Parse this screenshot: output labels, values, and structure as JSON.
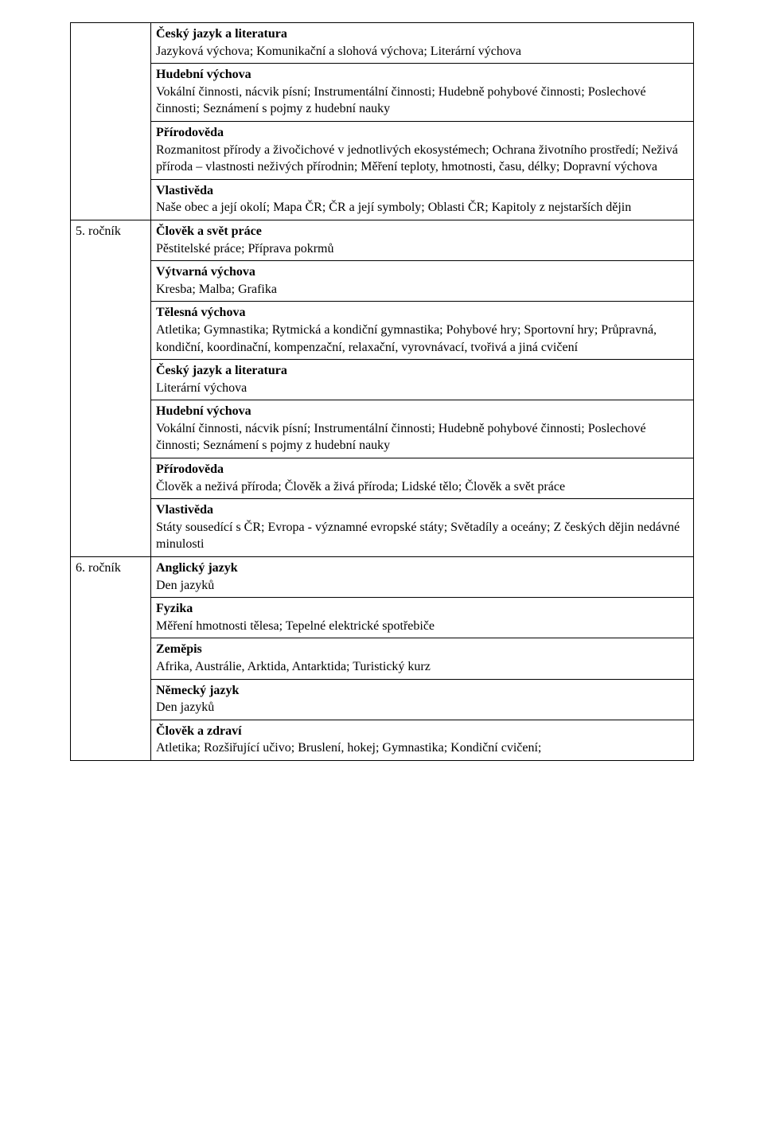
{
  "rows": [
    {
      "left": "",
      "cells": [
        {
          "title": "Český jazyk a literatura",
          "body": "Jazyková výchova; Komunikační a slohová výchova; Literární výchova"
        },
        {
          "title": "Hudební výchova",
          "body": "Vokální činnosti, nácvik písní; Instrumentální činnosti; Hudebně pohybové činnosti; Poslechové činnosti; Seznámení s pojmy z hudební nauky"
        },
        {
          "title": "Přírodověda",
          "body": "Rozmanitost přírody a živočichové v jednotlivých ekosystémech; Ochrana životního prostředí; Neživá příroda – vlastnosti neživých přírodnin; Měření teploty, hmotnosti, času, délky; Dopravní výchova"
        },
        {
          "title": "Vlastivěda",
          "body": "Naše obec a její okolí; Mapa ČR; ČR a její symboly; Oblasti ČR; Kapitoly z nejstarších dějin"
        }
      ]
    },
    {
      "left": "5. ročník",
      "cells": [
        {
          "title": "Člověk a svět práce",
          "body": "Pěstitelské práce; Příprava pokrmů"
        },
        {
          "title": "Výtvarná výchova",
          "body": "Kresba; Malba; Grafika"
        },
        {
          "title": "Tělesná výchova",
          "body": "Atletika; Gymnastika; Rytmická a kondiční gymnastika; Pohybové hry; Sportovní hry; Průpravná, kondiční, koordinační, kompenzační, relaxační, vyrovnávací, tvořivá a jiná cvičení"
        },
        {
          "title": "Český jazyk a literatura",
          "body": "Literární výchova"
        },
        {
          "title": "Hudební výchova",
          "body": "Vokální činnosti, nácvik písní; Instrumentální činnosti; Hudebně pohybové činnosti; Poslechové činnosti; Seznámení s pojmy z hudební nauky"
        },
        {
          "title": "Přírodověda",
          "body": "Člověk a neživá příroda; Člověk a živá příroda; Lidské tělo; Člověk a svět práce"
        },
        {
          "title": "Vlastivěda",
          "body": "Státy sousedící s ČR; Evropa - významné evropské státy; Světadíly a oceány; Z českých dějin nedávné minulosti"
        }
      ]
    },
    {
      "left": "6. ročník",
      "cells": [
        {
          "title": "Anglický jazyk",
          "body": "Den jazyků"
        },
        {
          "title": "Fyzika",
          "body": "Měření hmotnosti tělesa; Tepelné elektrické spotřebiče"
        },
        {
          "title": "Zeměpis",
          "body": "Afrika, Austrálie, Arktida, Antarktida; Turistický kurz"
        },
        {
          "title": "Německý jazyk",
          "body": "Den jazyků"
        },
        {
          "title": "Člověk a zdraví",
          "body": "Atletika; Rozšiřující učivo; Bruslení, hokej; Gymnastika; Kondiční cvičení;"
        }
      ]
    }
  ]
}
